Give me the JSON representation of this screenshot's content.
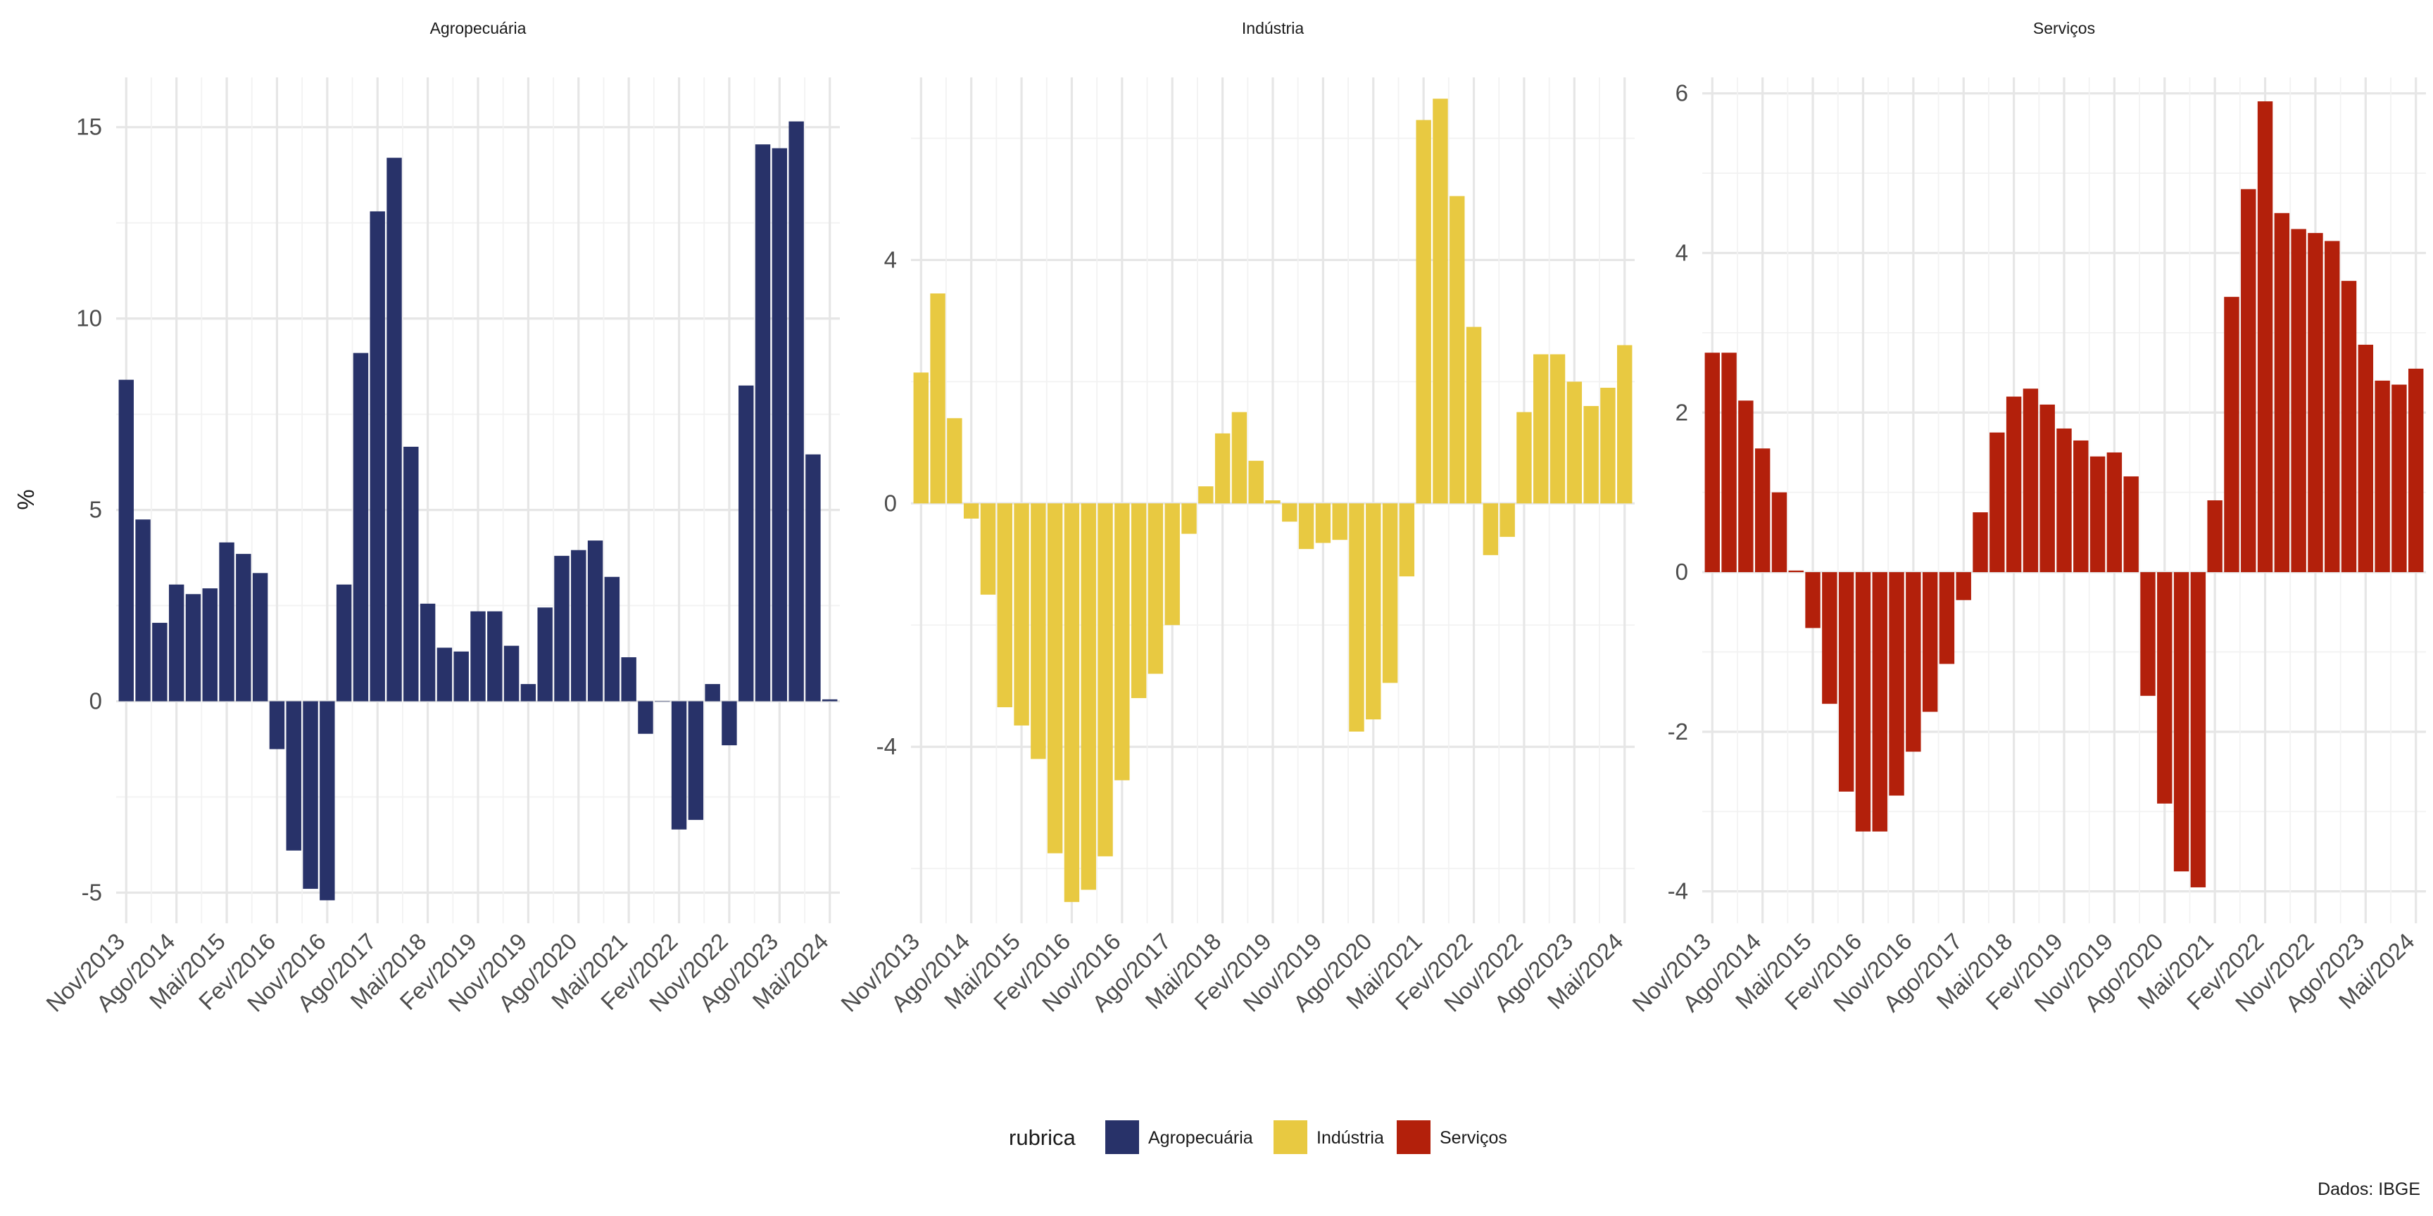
{
  "chart_data": {
    "type": "bar",
    "ylabel": "%",
    "caption": "Dados: IBGE",
    "legend": {
      "title": "rubrica",
      "position": "bottom"
    },
    "grid": true,
    "x_tick_labels": [
      "Nov/2013",
      "Ago/2014",
      "Mai/2015",
      "Fev/2016",
      "Nov/2016",
      "Ago/2017",
      "Mai/2018",
      "Fev/2019",
      "Nov/2019",
      "Ago/2020",
      "Mai/2021",
      "Fev/2022",
      "Nov/2022",
      "Ago/2023",
      "Mai/2024"
    ],
    "x_tick_every": 3,
    "panels": [
      {
        "name": "Agropecuária",
        "color": "#283269",
        "ylim": [
          -5.8,
          16.3
        ],
        "yticks": [
          -5,
          0,
          5,
          10,
          15
        ],
        "ytick_labels": [
          "-5",
          "0",
          "5",
          "10",
          "15"
        ],
        "values": [
          8.4,
          4.75,
          2.05,
          3.05,
          2.8,
          2.95,
          4.15,
          3.85,
          3.35,
          -1.25,
          -3.9,
          -4.9,
          -5.2,
          3.05,
          9.1,
          12.8,
          14.2,
          6.65,
          2.55,
          1.4,
          1.3,
          2.35,
          2.35,
          1.45,
          0.45,
          2.45,
          3.8,
          3.95,
          4.2,
          3.25,
          1.15,
          -0.85,
          0.0,
          -3.35,
          -3.1,
          0.45,
          -1.15,
          8.25,
          14.55,
          14.45,
          15.15,
          6.45,
          0.05
        ]
      },
      {
        "name": "Indústria",
        "color": "#e8c941",
        "ylim": [
          -6.9,
          7.0
        ],
        "yticks": [
          -4,
          0,
          4
        ],
        "ytick_labels": [
          "-4",
          "0",
          "4"
        ],
        "values": [
          2.15,
          3.45,
          1.4,
          -0.25,
          -1.5,
          -3.35,
          -3.65,
          -4.2,
          -5.75,
          -6.55,
          -6.35,
          -5.8,
          -4.55,
          -3.2,
          -2.8,
          -2.0,
          -0.5,
          0.28,
          1.15,
          1.5,
          0.7,
          0.05,
          -0.3,
          -0.75,
          -0.65,
          -0.6,
          -3.75,
          -3.55,
          -2.95,
          -1.2,
          6.3,
          6.65,
          5.05,
          2.9,
          -0.85,
          -0.55,
          1.5,
          2.45,
          2.45,
          2.0,
          1.6,
          1.9,
          2.6
        ]
      },
      {
        "name": "Serviços",
        "color": "#b3200b",
        "ylim": [
          -4.4,
          6.2
        ],
        "yticks": [
          -4,
          -2,
          0,
          2,
          4,
          6
        ],
        "ytick_labels": [
          "-4",
          "-2",
          "0",
          "2",
          "4",
          "6"
        ],
        "values": [
          2.75,
          2.75,
          2.15,
          1.55,
          1.0,
          0.02,
          -0.7,
          -1.65,
          -2.75,
          -3.25,
          -3.25,
          -2.8,
          -2.25,
          -1.75,
          -1.15,
          -0.35,
          0.75,
          1.75,
          2.2,
          2.3,
          2.1,
          1.8,
          1.65,
          1.45,
          1.5,
          1.2,
          -1.55,
          -2.9,
          -3.75,
          -3.95,
          0.9,
          3.45,
          4.8,
          5.9,
          4.5,
          4.3,
          4.25,
          4.15,
          3.65,
          2.85,
          2.4,
          2.35,
          2.55
        ]
      }
    ]
  }
}
